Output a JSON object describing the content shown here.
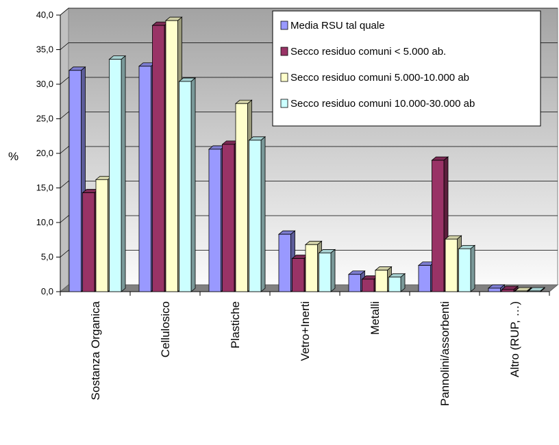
{
  "chart_data": {
    "type": "bar",
    "title": "",
    "xlabel": "",
    "ylabel": "%",
    "ylim": [
      0,
      40
    ],
    "yticks": [
      "0,0",
      "5,0",
      "10,0",
      "15,0",
      "20,0",
      "25,0",
      "30,0",
      "35,0",
      "40,0"
    ],
    "ytick_values": [
      0,
      5,
      10,
      15,
      20,
      25,
      30,
      35,
      40
    ],
    "categories": [
      "Sostanza Organica",
      "Cellulosico",
      "Plastiche",
      "Vetro+Inerti",
      "Metalli",
      "Pannolini/assorbenti",
      "Altro (RUP, …)"
    ],
    "series": [
      {
        "name": "Media RSU tal quale",
        "color": "#9999ff",
        "values": [
          32.0,
          32.6,
          20.6,
          8.3,
          2.5,
          3.8,
          0.5
        ]
      },
      {
        "name": "Secco residuo  comuni < 5.000 ab.",
        "color": "#993366",
        "values": [
          14.3,
          38.5,
          21.3,
          4.8,
          1.8,
          19.0,
          0.3
        ]
      },
      {
        "name": "Secco residuo comuni 5.000-10.000 ab",
        "color": "#ffffcc",
        "values": [
          16.2,
          39.2,
          27.2,
          6.8,
          3.1,
          7.6,
          0.1
        ]
      },
      {
        "name": "Secco residuo comuni 10.000-30.000 ab",
        "color": "#ccffff",
        "values": [
          33.6,
          30.4,
          21.9,
          5.6,
          2.1,
          6.2,
          0.1
        ]
      }
    ],
    "grid": true,
    "legend_position": "top-right"
  }
}
